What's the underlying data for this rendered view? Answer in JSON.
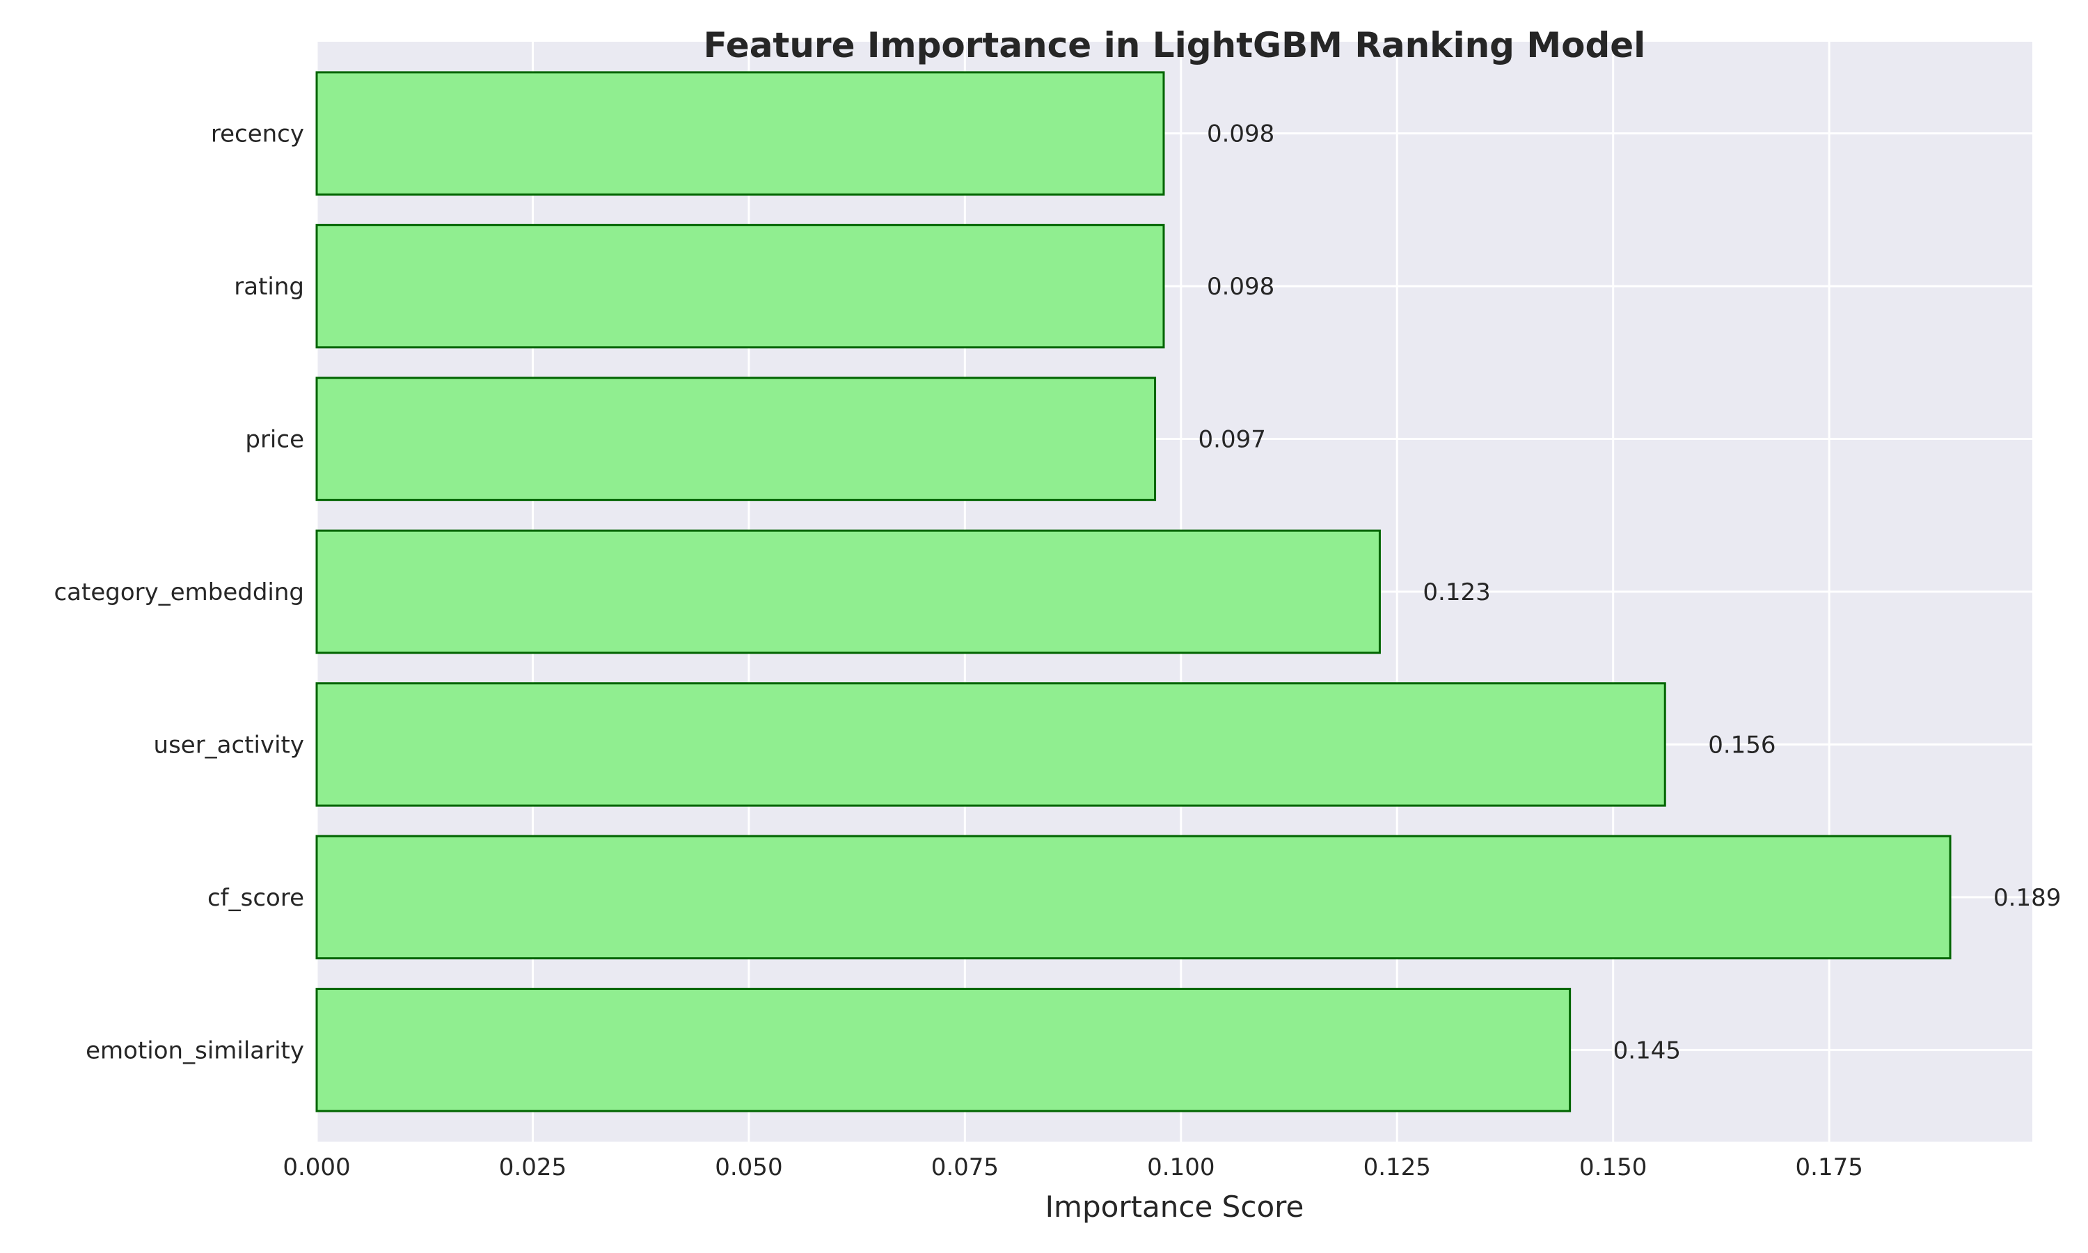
{
  "chart_data": {
    "type": "bar",
    "orientation": "horizontal",
    "title": "Feature Importance in LightGBM Ranking Model",
    "xlabel": "Importance Score",
    "ylabel": "",
    "categories": [
      "emotion_similarity",
      "cf_score",
      "user_activity",
      "category_embedding",
      "price",
      "rating",
      "recency"
    ],
    "values": [
      0.145,
      0.189,
      0.156,
      0.123,
      0.097,
      0.098,
      0.098
    ],
    "value_labels": [
      "0.145",
      "0.189",
      "0.156",
      "0.123",
      "0.097",
      "0.098",
      "0.098"
    ],
    "xlim": [
      0,
      0.1985
    ],
    "xticks": [
      0,
      0.025,
      0.05,
      0.075,
      0.1,
      0.125,
      0.15,
      0.175
    ],
    "xtick_labels": [
      "0.000",
      "0.025",
      "0.050",
      "0.075",
      "0.100",
      "0.125",
      "0.150",
      "0.175"
    ],
    "grid": true,
    "legend": "none",
    "colors": {
      "bar_fill": "#90ee90",
      "bar_edge": "#006400",
      "plot_background": "#eaeaf2",
      "grid": "#ffffff",
      "text": "#262626"
    }
  }
}
